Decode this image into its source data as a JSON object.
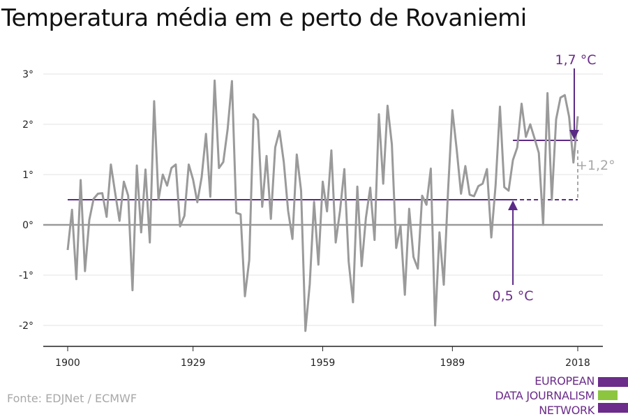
{
  "chart_data": {
    "type": "line",
    "title": "Temperatura média em e perto de Rovaniemi",
    "xlabel": "",
    "ylabel": "",
    "xlim": [
      1898,
      2022
    ],
    "ylim": [
      -2.4,
      3.2
    ],
    "x_ticks": [
      {
        "value": 1900,
        "label": "1900"
      },
      {
        "value": 1929,
        "label": "1929"
      },
      {
        "value": 1959,
        "label": "1959"
      },
      {
        "value": 1989,
        "label": "1989"
      },
      {
        "value": 2018,
        "label": "2018"
      }
    ],
    "y_ticks": [
      {
        "value": -2,
        "label": "-2°"
      },
      {
        "value": -1,
        "label": "-1°"
      },
      {
        "value": 0,
        "label": "0°"
      },
      {
        "value": 1,
        "label": "1°"
      },
      {
        "value": 2,
        "label": "2°"
      },
      {
        "value": 3,
        "label": "3°"
      }
    ],
    "grid": true,
    "series": [
      {
        "color": "#9a9a9a",
        "x": [
          1900,
          1901,
          1902,
          1903,
          1904,
          1905,
          1906,
          1907,
          1908,
          1909,
          1910,
          1911,
          1912,
          1913,
          1914,
          1915,
          1916,
          1917,
          1918,
          1919,
          1920,
          1921,
          1922,
          1923,
          1924,
          1925,
          1926,
          1927,
          1928,
          1929,
          1930,
          1931,
          1932,
          1933,
          1934,
          1935,
          1936,
          1937,
          1938,
          1939,
          1940,
          1941,
          1942,
          1943,
          1944,
          1945,
          1946,
          1947,
          1948,
          1949,
          1950,
          1951,
          1952,
          1953,
          1954,
          1955,
          1956,
          1957,
          1958,
          1959,
          1960,
          1961,
          1962,
          1963,
          1964,
          1965,
          1966,
          1967,
          1968,
          1969,
          1970,
          1971,
          1972,
          1973,
          1974,
          1975,
          1976,
          1977,
          1978,
          1979,
          1980,
          1981,
          1982,
          1983,
          1984,
          1985,
          1986,
          1987,
          1988,
          1989,
          1990,
          1991,
          1992,
          1993,
          1994,
          1995,
          1996,
          1997,
          1998,
          1999,
          2000,
          2001,
          2002,
          2003,
          2004,
          2005,
          2006,
          2007,
          2008,
          2009,
          2010,
          2011,
          2012,
          2013,
          2014,
          2015,
          2016,
          2017,
          2018
        ],
        "values": [
          -0.5,
          0.3,
          -1.08,
          0.89,
          -0.92,
          0.1,
          0.52,
          0.62,
          0.63,
          0.16,
          1.2,
          0.63,
          0.08,
          0.86,
          0.58,
          -1.3,
          1.18,
          -0.15,
          1.1,
          -0.35,
          2.46,
          0.5,
          1.0,
          0.78,
          1.13,
          1.2,
          -0.03,
          0.18,
          1.2,
          0.9,
          0.45,
          0.95,
          1.81,
          0.56,
          2.87,
          1.13,
          1.25,
          1.9,
          2.86,
          0.24,
          0.21,
          -1.42,
          -0.7,
          2.2,
          2.08,
          0.36,
          1.37,
          0.12,
          1.54,
          1.87,
          1.25,
          0.28,
          -0.28,
          1.4,
          0.68,
          -2.11,
          -1.18,
          0.46,
          -0.79,
          0.86,
          0.27,
          1.48,
          -0.35,
          0.28,
          1.11,
          -0.73,
          -1.54,
          0.76,
          -0.82,
          0.14,
          0.74,
          -0.3,
          2.2,
          0.82,
          2.37,
          1.6,
          -0.46,
          -0.02,
          -1.39,
          0.32,
          -0.64,
          -0.87,
          0.58,
          0.4,
          1.12,
          -2.0,
          -0.15,
          -1.19,
          0.7,
          2.28,
          1.5,
          0.62,
          1.17,
          0.6,
          0.57,
          0.77,
          0.82,
          1.11,
          -0.25,
          0.8,
          2.35,
          0.75,
          0.68,
          1.29,
          1.54,
          2.41,
          1.75,
          2.0,
          1.72,
          1.43,
          0.0,
          2.62,
          0.5,
          2.1,
          2.53,
          2.58,
          2.15,
          1.24,
          2.16
        ]
      }
    ],
    "reference_lines": [
      {
        "label": "0,5 °C",
        "value": 0.5,
        "x_start": 1900,
        "x_end": 2018,
        "solid_until": 2003,
        "color": "#5b2a86"
      },
      {
        "label": "1,7 °C",
        "value": 1.68,
        "x_start": 2003,
        "x_end": 2018,
        "color": "#5b2a86"
      }
    ],
    "annotations": [
      {
        "text": "0,5 °C",
        "color": "#6b2c8a",
        "points_to": [
          2003,
          0.5
        ]
      },
      {
        "text": "1,7 °C",
        "color": "#6b2c8a",
        "points_to": [
          2018,
          1.68
        ]
      },
      {
        "text": "+1,2°",
        "color": "#a8a8a8"
      }
    ]
  },
  "source": "Fonte: EDJNet / ECMWF",
  "logo": {
    "lines": [
      "EUROPEAN",
      "DATA JOURNALISM",
      "NETWORK"
    ],
    "colors": {
      "purple": "#6b2c8a",
      "green": "#8cc63f"
    }
  }
}
